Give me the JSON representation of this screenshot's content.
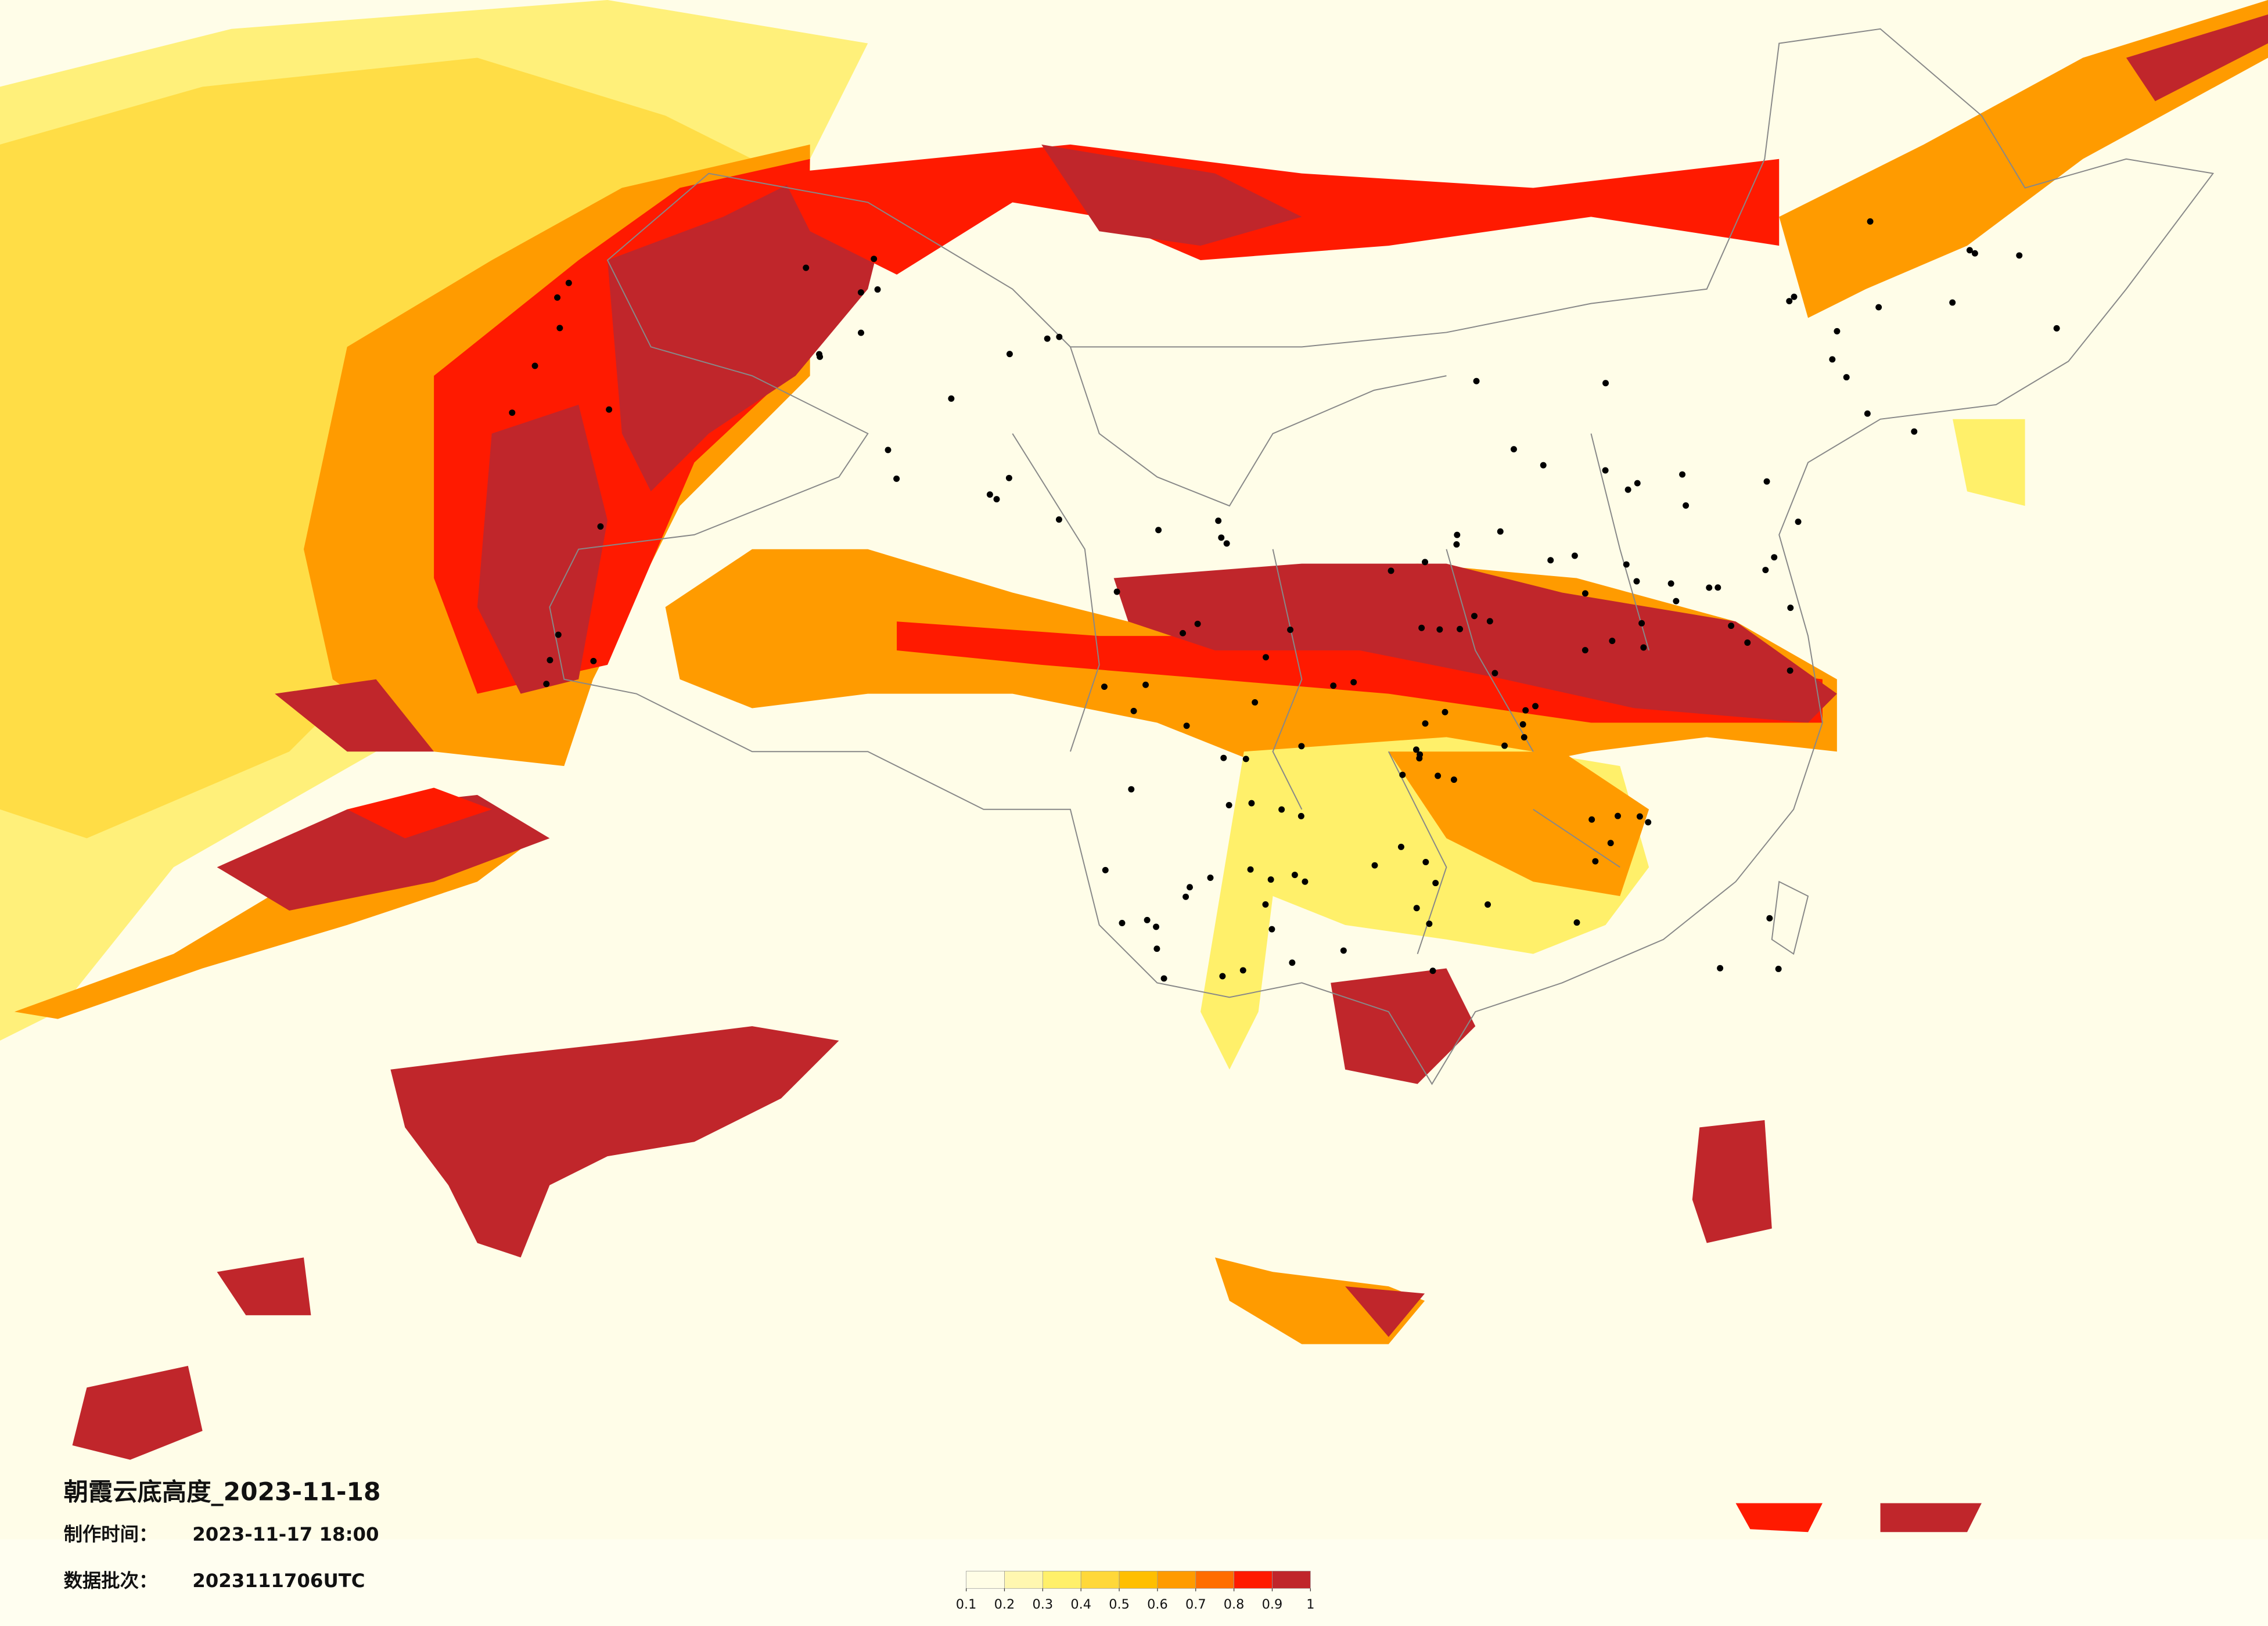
{
  "header": {
    "title": "朝霞云底高度_2023-11-18",
    "made_label": "制作时间：",
    "made_time": "2023-11-17 18:00",
    "batch_label": "数据批次：",
    "batch": "2023111706UTC"
  },
  "legend": {
    "ticks": [
      0.1,
      0.2,
      0.3,
      0.4,
      0.5,
      0.6,
      0.7,
      0.8,
      0.9,
      1
    ],
    "colors": [
      "#fffde6",
      "#fff7b0",
      "#fff06a",
      "#ffd83a",
      "#ffbf00",
      "#ff9b00",
      "#ff6d00",
      "#ff1a00",
      "#c0262b"
    ]
  }
}
